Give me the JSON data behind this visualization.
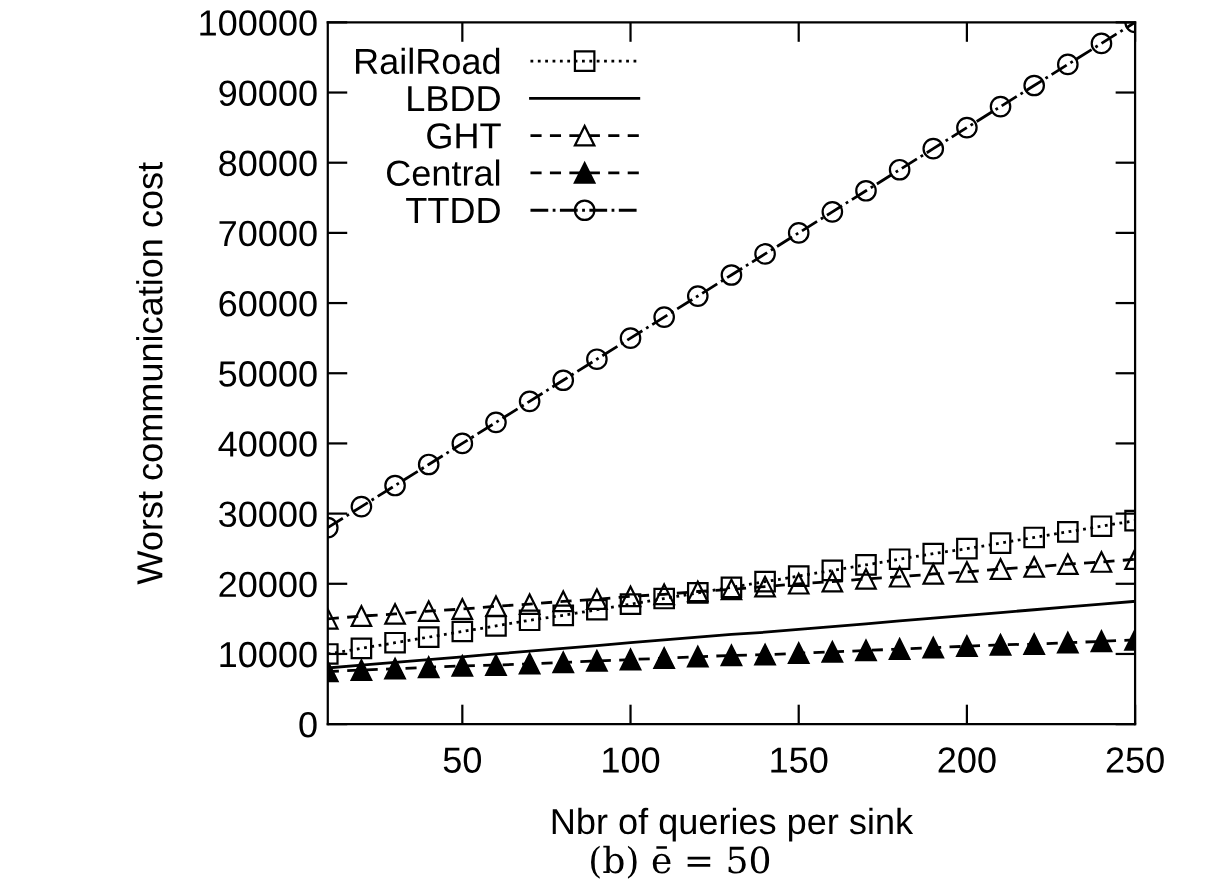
{
  "chart_data": {
    "type": "line",
    "xlabel": "Nbr of queries per sink",
    "ylabel": "Worst communication cost",
    "annotations": [
      "(b) ē = 50"
    ],
    "x": [
      10,
      20,
      30,
      40,
      50,
      60,
      70,
      80,
      90,
      100,
      110,
      120,
      130,
      140,
      150,
      160,
      170,
      180,
      190,
      200,
      210,
      220,
      230,
      240,
      250
    ],
    "series": [
      {
        "name": "RailRoad",
        "color": "#000000",
        "marker": "square",
        "line_style": "dotted",
        "values": [
          10000,
          10800,
          11600,
          12400,
          13200,
          14000,
          14800,
          15500,
          16300,
          17100,
          17900,
          18700,
          19500,
          20300,
          21100,
          21900,
          22700,
          23500,
          24300,
          25000,
          25800,
          26600,
          27400,
          28200,
          29000
        ]
      },
      {
        "name": "LBDD",
        "color": "#000000",
        "marker": "none",
        "line_style": "solid",
        "values": [
          8000,
          8400,
          8800,
          9200,
          9600,
          10000,
          10400,
          10800,
          11200,
          11600,
          12000,
          12400,
          12800,
          13100,
          13500,
          13900,
          14300,
          14700,
          15100,
          15500,
          15900,
          16300,
          16700,
          17100,
          17500
        ]
      },
      {
        "name": "GHT",
        "color": "#000000",
        "marker": "triangle",
        "line_style": "dashed",
        "values": [
          15000,
          15400,
          15700,
          16100,
          16400,
          16800,
          17100,
          17500,
          17800,
          18200,
          18500,
          18900,
          19200,
          19600,
          20000,
          20300,
          20700,
          21000,
          21400,
          21700,
          22100,
          22400,
          22800,
          23100,
          23500
        ]
      },
      {
        "name": "Central",
        "color": "#000000",
        "marker": "triangle",
        "line_style": "dashed",
        "values": [
          7500,
          7700,
          7900,
          8100,
          8300,
          8400,
          8600,
          8800,
          9000,
          9200,
          9400,
          9600,
          9800,
          9900,
          10100,
          10300,
          10500,
          10700,
          10900,
          11100,
          11300,
          11400,
          11600,
          11800,
          12000
        ]
      },
      {
        "name": "TTDD",
        "color": "#000000",
        "marker": "circle",
        "line_style": "dashdot",
        "values": [
          28000,
          31000,
          34000,
          37000,
          40000,
          43000,
          46000,
          49000,
          52000,
          55000,
          58000,
          61000,
          64000,
          67000,
          70000,
          73000,
          76000,
          79000,
          82000,
          85000,
          88000,
          91000,
          94000,
          97000,
          100000
        ]
      }
    ],
    "xlim": [
      10,
      250
    ],
    "xticks": [
      50,
      100,
      150,
      200,
      250
    ],
    "ylim": [
      0,
      100000
    ],
    "yticks": [
      0,
      10000,
      20000,
      30000,
      40000,
      50000,
      60000,
      70000,
      80000,
      90000,
      100000
    ],
    "grid": false,
    "legend": "top left"
  }
}
